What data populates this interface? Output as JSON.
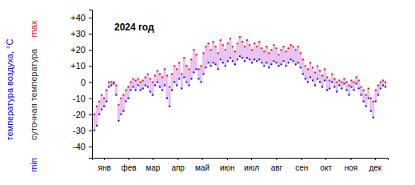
{
  "chart_data": {
    "type": "scatter",
    "title": "2024 год",
    "ylabel": "температура воздуха, °C",
    "annotations": [
      "суточная температура"
    ],
    "x": [
      1,
      4,
      7,
      10,
      13,
      16,
      19,
      22,
      25,
      28,
      31,
      34,
      37,
      40,
      43,
      46,
      49,
      52,
      55,
      58,
      61,
      64,
      67,
      70,
      73,
      76,
      79,
      82,
      85,
      88,
      91,
      94,
      97,
      100,
      103,
      106,
      109,
      112,
      115,
      118,
      121,
      124,
      127,
      130,
      133,
      136,
      139,
      142,
      145,
      148,
      151,
      154,
      157,
      160,
      163,
      166,
      169,
      172,
      175,
      178,
      181,
      184,
      187,
      190,
      193,
      196,
      199,
      202,
      205,
      208,
      211,
      214,
      217,
      220,
      223,
      226,
      229,
      232,
      235,
      238,
      241,
      244,
      247,
      250,
      253,
      256,
      259,
      262,
      265,
      268,
      271,
      274,
      277,
      280,
      283,
      286,
      289,
      292,
      295,
      298,
      301,
      304,
      307,
      310,
      313,
      316,
      319,
      322,
      325,
      328,
      331,
      334,
      337,
      340,
      343,
      346,
      349,
      352,
      355,
      358,
      361,
      364
    ],
    "series": [
      {
        "name": "max",
        "color": "#ff0000",
        "marker": "dot",
        "values": [
          -14,
          -20,
          -15,
          -12,
          -8,
          -10,
          -5,
          0,
          0,
          0,
          -2,
          -14,
          -10,
          -8,
          -5,
          -3,
          0,
          2,
          1,
          2,
          0,
          1,
          3,
          5,
          2,
          0,
          4,
          7,
          5,
          3,
          8,
          4,
          -3,
          5,
          10,
          8,
          12,
          5,
          15,
          10,
          8,
          14,
          20,
          17,
          8,
          10,
          18,
          22,
          24,
          20,
          25,
          22,
          18,
          26,
          23,
          20,
          24,
          27,
          22,
          19,
          24,
          28,
          25,
          22,
          26,
          23,
          20,
          24,
          22,
          25,
          21,
          19,
          22,
          18,
          20,
          23,
          21,
          17,
          20,
          22,
          19,
          21,
          23,
          22,
          20,
          22,
          18,
          14,
          10,
          8,
          12,
          9,
          6,
          10,
          7,
          4,
          8,
          3,
          1,
          5,
          2,
          0,
          1,
          0,
          2,
          0,
          -2,
          1,
          0,
          3,
          1,
          -3,
          -5,
          -8,
          -4,
          -10,
          -12,
          -5,
          -2,
          0,
          1,
          0
        ]
      },
      {
        "name": "min",
        "color": "#0000ff",
        "marker": "dot",
        "values": [
          -25,
          -30,
          -27,
          -20,
          -17,
          -15,
          -12,
          -3,
          -2,
          -1,
          -8,
          -24,
          -20,
          -18,
          -12,
          -10,
          -5,
          -3,
          -5,
          -2,
          -5,
          -4,
          -2,
          -3,
          -6,
          -8,
          -2,
          0,
          -3,
          -5,
          -2,
          -10,
          -15,
          -5,
          0,
          -2,
          2,
          -4,
          3,
          0,
          -2,
          2,
          6,
          8,
          2,
          0,
          5,
          9,
          12,
          10,
          12,
          11,
          8,
          14,
          12,
          10,
          13,
          15,
          13,
          11,
          14,
          16,
          15,
          13,
          15,
          14,
          12,
          14,
          13,
          14,
          12,
          10,
          12,
          9,
          11,
          13,
          12,
          10,
          11,
          13,
          10,
          12,
          14,
          13,
          11,
          12,
          9,
          5,
          2,
          0,
          3,
          1,
          -2,
          2,
          0,
          -3,
          1,
          -5,
          -4,
          0,
          -3,
          -6,
          -2,
          -4,
          -1,
          -5,
          -8,
          -3,
          -5,
          -1,
          -4,
          -8,
          -12,
          -15,
          -10,
          -18,
          -22,
          -12,
          -8,
          -4,
          -2,
          -3
        ]
      }
    ],
    "xlim": [
      1,
      367
    ],
    "xticks": [
      {
        "value": 16,
        "label": "янв"
      },
      {
        "value": 46,
        "label": "фев"
      },
      {
        "value": 76,
        "label": "мар"
      },
      {
        "value": 107,
        "label": "апр"
      },
      {
        "value": 137,
        "label": "май"
      },
      {
        "value": 168,
        "label": "июн"
      },
      {
        "value": 198,
        "label": "июл"
      },
      {
        "value": 229,
        "label": "авг"
      },
      {
        "value": 260,
        "label": "сен"
      },
      {
        "value": 290,
        "label": "окт"
      },
      {
        "value": 321,
        "label": "ноя"
      },
      {
        "value": 351,
        "label": "дек"
      }
    ],
    "ylim": [
      -47,
      45
    ],
    "yticks": [
      {
        "value": 40,
        "label": "+40"
      },
      {
        "value": 30,
        "label": "+30"
      },
      {
        "value": 20,
        "label": "+20"
      },
      {
        "value": 10,
        "label": "+10"
      },
      0,
      -10,
      -20,
      -30,
      -40
    ],
    "grid": false
  }
}
